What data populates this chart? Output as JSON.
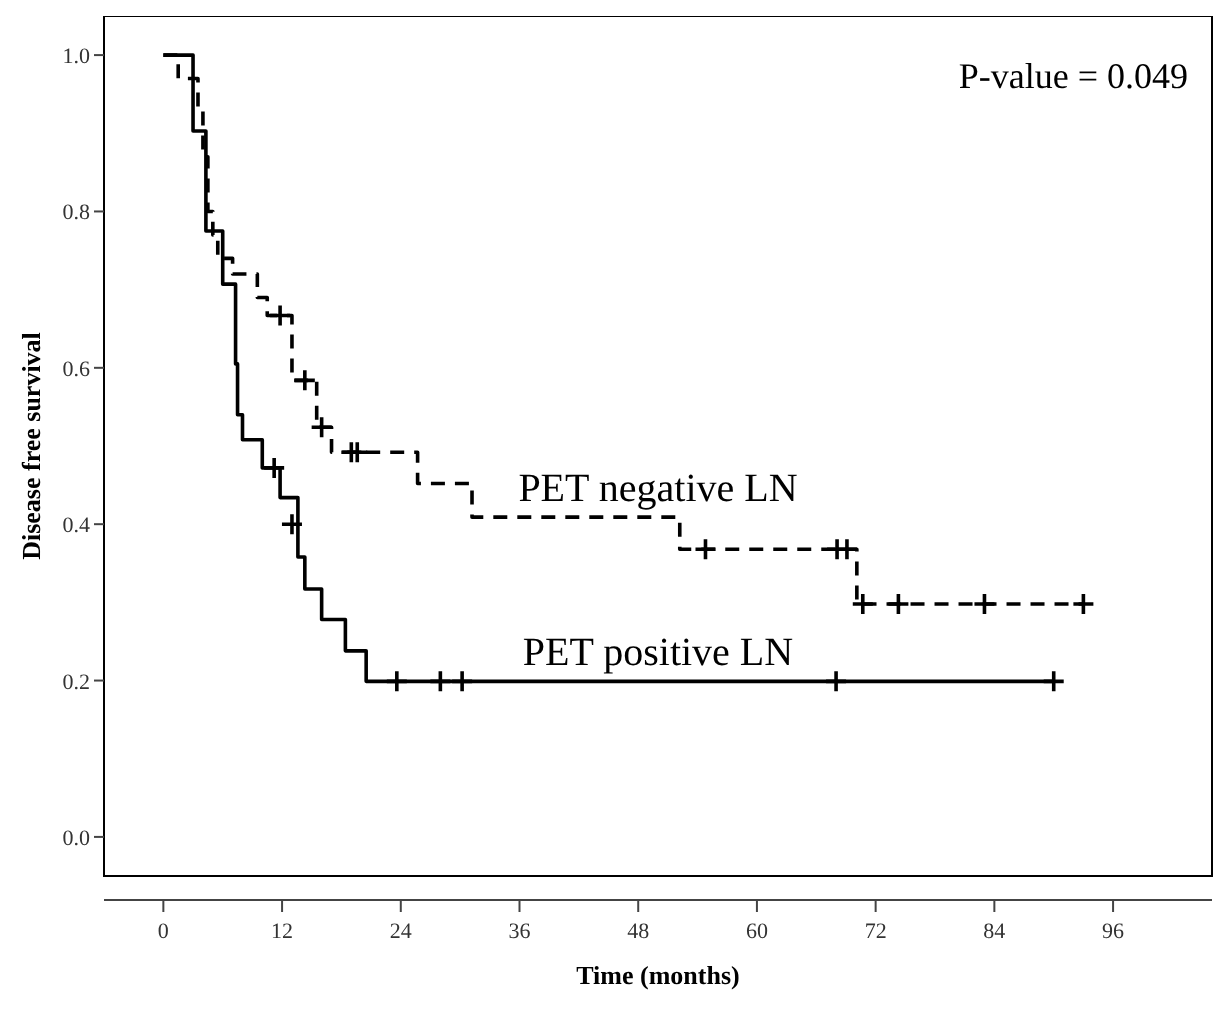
{
  "chart_data": {
    "type": "step",
    "xlabel": "Time (months)",
    "ylabel": "Disease free survival",
    "annotations": [
      "P-value = 0.049"
    ],
    "xlim": [
      -6,
      106
    ],
    "ylim": [
      -0.05,
      1.05
    ],
    "xticks": [
      0,
      12,
      24,
      36,
      48,
      60,
      72,
      84,
      96
    ],
    "yticks": [
      {
        "value": 0,
        "label": "0.0"
      },
      {
        "value": 0.2,
        "label": "0.2"
      },
      {
        "value": 0.4,
        "label": "0.4"
      },
      {
        "value": 0.6,
        "label": "0.6"
      },
      {
        "value": 0.8,
        "label": "0.8"
      },
      {
        "value": 1,
        "label": "1.0"
      }
    ],
    "grid": false,
    "series": [
      {
        "name": "PET negative LN",
        "color": "#000000",
        "line_style": "dashed",
        "x": [
          0,
          1.5,
          3.5,
          4,
          4.5,
          5,
          5.5,
          7,
          9.5,
          10.5,
          13,
          15.5,
          17,
          25.7,
          31.2,
          52.2,
          70.1,
          93
        ],
        "values": [
          1,
          0.97,
          0.93,
          0.87,
          0.8,
          0.77,
          0.74,
          0.72,
          0.69,
          0.667,
          0.584,
          0.524,
          0.492,
          0.452,
          0.409,
          0.368,
          0.298,
          0.298
        ]
      },
      {
        "name": "PET positive LN",
        "color": "#000000",
        "line_style": "solid",
        "x": [
          0,
          3,
          4.3,
          6,
          7.3,
          7.5,
          8,
          10,
          11.8,
          13.6,
          14.3,
          16,
          18.4,
          20.5,
          90
        ],
        "values": [
          1,
          0.903,
          0.775,
          0.707,
          0.605,
          0.54,
          0.508,
          0.472,
          0.434,
          0.358,
          0.317,
          0.278,
          0.238,
          0.199,
          0.199
        ]
      },
      {
        "type": "scatter",
        "marker": "cross",
        "color": "#000000",
        "x": [
          11.8,
          14.3,
          16,
          19,
          19.6,
          54.8,
          68.1,
          69.1,
          70.7,
          74.3,
          83,
          93
        ],
        "values": [
          0.667,
          0.584,
          0.524,
          0.492,
          0.492,
          0.368,
          0.368,
          0.368,
          0.298,
          0.298,
          0.298,
          0.298
        ]
      },
      {
        "type": "scatter",
        "marker": "cross",
        "color": "#000000",
        "x": [
          11.2,
          13,
          23.6,
          28,
          30.2,
          68,
          90
        ],
        "values": [
          0.472,
          0.4,
          0.199,
          0.199,
          0.199,
          0.199,
          0.199
        ]
      }
    ]
  }
}
